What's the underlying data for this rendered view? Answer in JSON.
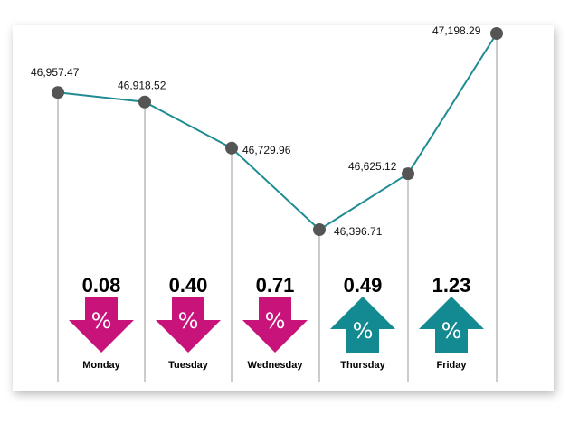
{
  "chart_data": {
    "type": "line",
    "categories": [
      "Monday",
      "Tuesday",
      "Wednesday",
      "Thursday",
      "Friday",
      ""
    ],
    "values": [
      46957.47,
      46918.52,
      46729.96,
      46396.71,
      46625.12,
      47198.29
    ],
    "value_labels": [
      "46,957.47",
      "46,918.52",
      "46,729.96",
      "46,396.71",
      "46,625.12",
      "47,198.29"
    ],
    "changes": [
      {
        "day": "Monday",
        "value": "0.08",
        "direction": "down"
      },
      {
        "day": "Tuesday",
        "value": "0.40",
        "direction": "down"
      },
      {
        "day": "Wednesday",
        "value": "0.71",
        "direction": "down"
      },
      {
        "day": "Thursday",
        "value": "0.49",
        "direction": "up"
      },
      {
        "day": "Friday",
        "value": "1.23",
        "direction": "up"
      }
    ],
    "percent_symbol": "%",
    "colors": {
      "line": "#1f8c93",
      "marker": "#555555",
      "down": "#c8137a",
      "up": "#138a91",
      "droplines": "#9a9a9a"
    },
    "title": "",
    "xlabel": "",
    "ylabel": "",
    "grid": false
  }
}
